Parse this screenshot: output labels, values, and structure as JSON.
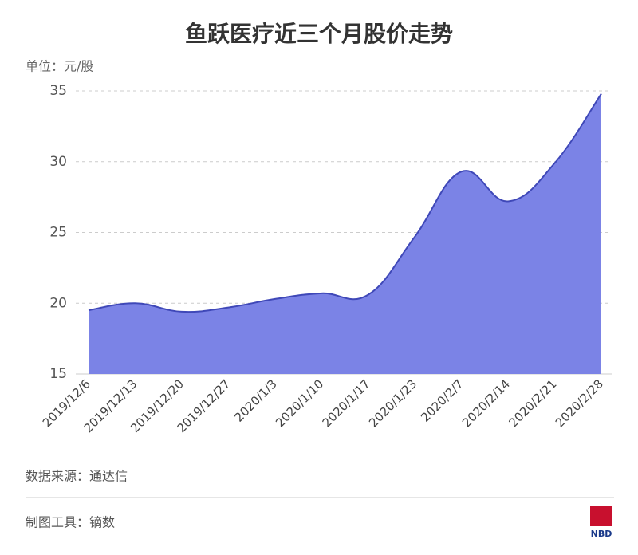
{
  "chart_data": {
    "type": "area",
    "title": "鱼跃医疗近三个月股价走势",
    "unit_label": "单位：元/股",
    "categories": [
      "2019/12/6",
      "2019/12/13",
      "2019/12/20",
      "2019/12/27",
      "2020/1/3",
      "2020/1/10",
      "2020/1/17",
      "2020/1/23",
      "2020/2/7",
      "2020/2/14",
      "2020/2/21",
      "2020/2/28"
    ],
    "values": [
      19.5,
      20.0,
      19.4,
      19.7,
      20.3,
      20.7,
      20.6,
      24.7,
      29.3,
      27.2,
      29.9,
      34.8
    ],
    "color": "#7b83e6",
    "line_color": "#3f48b8",
    "ylim": [
      15,
      35
    ],
    "yticks": [
      15,
      20,
      25,
      30,
      35
    ],
    "grid": true,
    "source": "数据来源：通达信",
    "tool": "制图工具：镝数",
    "logo": "NBD"
  }
}
